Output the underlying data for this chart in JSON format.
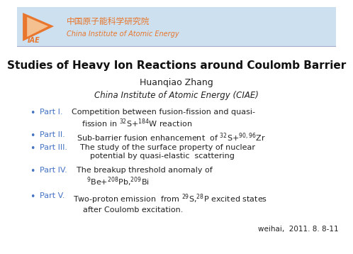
{
  "title": "Studies of Heavy Ion Reactions around Coulomb Barrier",
  "author": "Huanqiao Zhang",
  "institute": "China Institute of Atomic Energy (CIAE)",
  "footer": "weihai,  2011. 8. 8-11",
  "header_bg": "#cce0f0",
  "bullet_color": "#4472C4",
  "title_color": "#111111",
  "part_color": "#4472C4",
  "text_color": "#222222",
  "logo_cn": "中国原子能科学研究院",
  "logo_en": "China Institute of Atomic Energy",
  "logo_orange": "#E8762C",
  "logo_cn_color": "#E8762C",
  "logo_en_color": "#E8762C",
  "parts": [
    [
      "Part I.",
      "    Competition between fusion-fission and quasi-\n    fission in $^{32}$S+$^{184}$W reaction"
    ],
    [
      "Part II.",
      "  Sub-barrier fusion enhancement  of $^{32}$S+$^{90,96}$Zr"
    ],
    [
      "Part III.",
      " The study of the surface property of nuclear\n    potential by quasi-elastic  scattering"
    ],
    [
      "Part IV.",
      " The breakup threshold anomaly of\n    $^9$Be+$^{208}$Pb,$^{209}$Bi"
    ],
    [
      "Part V.",
      "  Two-proton emission  from $^{29}$S,$^{28}$P excited states\n    after Coulomb excitation."
    ]
  ]
}
